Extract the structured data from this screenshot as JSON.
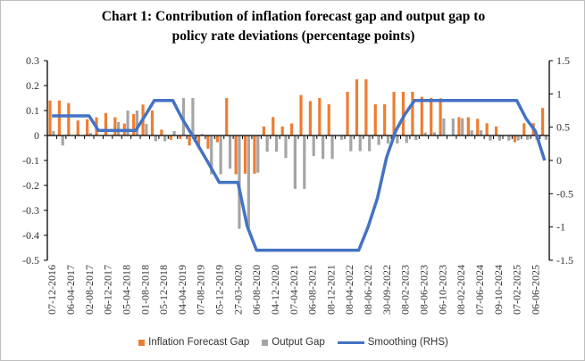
{
  "title_lines": [
    "Chart 1: Contribution of inflation forecast gap and output gap to",
    "policy rate deviations (percentage points)"
  ],
  "chart_data": {
    "type": "bar+line",
    "title": "Chart 1: Contribution of inflation forecast gap and output gap to policy rate deviations (percentage points)",
    "categories": [
      "07-12-2016",
      "",
      "06-04-2017",
      "",
      "02-08-2017",
      "",
      "06-12-2017",
      "",
      "05-04-2018",
      "",
      "01-08-2018",
      "",
      "05-12-2018",
      "",
      "04-04-2019",
      "",
      "07-08-2019",
      "",
      "05-12-2019",
      "",
      "27-03-2020",
      "",
      "06-08-2020",
      "",
      "04-12-2020",
      "",
      "07-04-2021",
      "",
      "06-08-2021",
      "",
      "08-12-2021",
      "",
      "08-04-2022",
      "",
      "08-06-2022",
      "",
      "30-09-2022",
      "",
      "08-02-2023",
      "",
      "08-06-2023",
      "",
      "06-10-2023",
      "",
      "08-02-2024",
      "",
      "07-06-2024",
      "",
      "09-10-2024",
      "",
      "07-02-2025",
      "",
      "06-06-2025",
      ""
    ],
    "y_left": {
      "ticks": [
        "0.3",
        "0.2",
        "0.1",
        "0",
        "-0.1",
        "-0.2",
        "-0.3",
        "-0.4",
        "-0.5"
      ],
      "ylim": [
        -0.5,
        0.3
      ]
    },
    "y_right": {
      "ticks": [
        "1.5",
        "1",
        "0.5",
        "0",
        "-0.5",
        "-1",
        "-1.5"
      ],
      "ylim": [
        -1.5,
        1.5
      ]
    },
    "grid": false,
    "legend_placement": "bottom",
    "series": [
      {
        "name": "Inflation Forecast Gap",
        "type": "bar",
        "axis": "left",
        "color": "#ED7D31",
        "values": [
          0.14,
          0.14,
          0.13,
          0.06,
          0.065,
          0.073,
          0.09,
          0.073,
          0.048,
          0.086,
          0.124,
          0.1,
          0.023,
          -0.017,
          -0.014,
          -0.04,
          -0.052,
          -0.053,
          -0.027,
          0.15,
          -0.155,
          -0.153,
          -0.153,
          0.036,
          0.074,
          0.036,
          0.048,
          0.162,
          0.138,
          0.15,
          0.125,
          0,
          0.175,
          0.225,
          0.225,
          0.125,
          0.125,
          0.175,
          0.175,
          0.175,
          0.155,
          0.15,
          0.149,
          0,
          0.073,
          0.073,
          0.067,
          0.049,
          0.036,
          0,
          -0.027,
          0.049,
          0.049,
          0.11
        ]
      },
      {
        "name": "Output Gap",
        "type": "bar",
        "axis": "left",
        "color": "#A5A5A5",
        "values": [
          0.018,
          -0.04,
          0,
          0,
          0.01,
          0,
          0,
          0.054,
          0.1,
          0.1,
          0.046,
          -0.023,
          -0.023,
          0.018,
          0.15,
          0.15,
          0.006,
          -0.155,
          -0.155,
          -0.133,
          -0.374,
          -0.37,
          -0.149,
          -0.065,
          -0.065,
          -0.09,
          -0.214,
          -0.214,
          -0.082,
          -0.094,
          -0.094,
          -0.017,
          -0.063,
          -0.063,
          -0.063,
          -0.038,
          -0.032,
          -0.032,
          -0.03,
          -0.018,
          0.012,
          0.013,
          0.068,
          0.068,
          0.069,
          0.021,
          0.021,
          -0.02,
          -0.02,
          -0.02,
          -0.02,
          -0.017,
          -0.017,
          -0.017
        ]
      },
      {
        "name": "Smoothing (RHS)",
        "type": "line",
        "axis": "right",
        "color": "#4472C4",
        "values": [
          0.67,
          0.67,
          0.67,
          0.67,
          0.67,
          0.45,
          0.45,
          0.45,
          0.45,
          0.45,
          0.67,
          0.9,
          0.9,
          0.9,
          0.63,
          0.4,
          0.16,
          -0.08,
          -0.33,
          -0.33,
          -0.33,
          -0.99,
          -1.35,
          -1.35,
          -1.35,
          -1.35,
          -1.35,
          -1.35,
          -1.35,
          -1.35,
          -1.35,
          -1.35,
          -1.35,
          -1.35,
          -1.0,
          -0.57,
          0.05,
          0.45,
          0.7,
          0.9,
          0.9,
          0.9,
          0.9,
          0.9,
          0.9,
          0.9,
          0.9,
          0.9,
          0.9,
          0.9,
          0.9,
          0.63,
          0.44,
          0.0
        ]
      }
    ]
  }
}
